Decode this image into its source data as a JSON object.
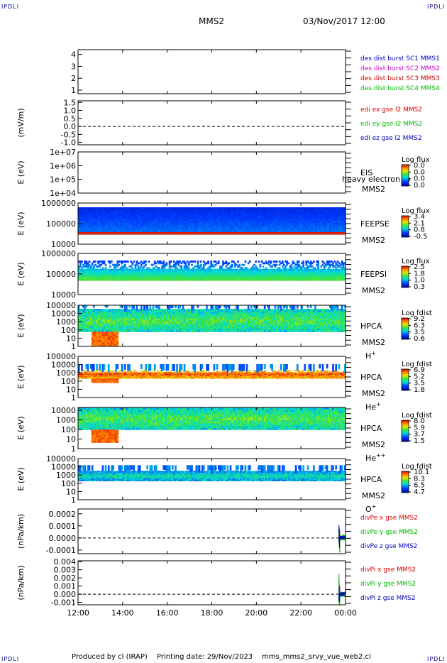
{
  "header": {
    "corner_labels": [
      "IPDLI",
      "IPDLI",
      "IPDLI",
      "IPDLI"
    ],
    "spacecraft": "MMS2",
    "datetime": "03/Nov/2017 12:00"
  },
  "footer": {
    "producer": "Produced by cl (IRAP)",
    "printing": "Printing date: 29/Nov/2023",
    "filename": "mms_mms2_srvy_vue_web2.cl"
  },
  "colors": {
    "mms1": "#0000cc",
    "mms2": "#cc00cc",
    "mms3": "#cc0000",
    "mms4": "#00bb00",
    "x": "#dd0000",
    "y": "#00bb00",
    "z": "#0000bb",
    "frame": "#000000"
  },
  "chart_data": [
    {
      "type": "line",
      "ylabel": "",
      "yticks": [
        "1",
        "2",
        "3",
        "4"
      ],
      "ylim": [
        0.7,
        4.4
      ],
      "legend": [
        {
          "text": "des dist burst SC1 MMS1",
          "color": "#0000cc"
        },
        {
          "text": "des dist burst SC2 MMS2",
          "color": "#cc00cc"
        },
        {
          "text": "des dist burst SC3 MMS3",
          "color": "#cc0000"
        },
        {
          "text": "des dist burst SC4 MMS4",
          "color": "#00bb00"
        }
      ]
    },
    {
      "type": "line",
      "ylabel": "(mV/m)",
      "yticks": [
        "1.5",
        "1.0",
        "0.5",
        "0.0",
        "-0.5",
        "-1.0"
      ],
      "ylim": [
        -1.15,
        1.6
      ],
      "zero_line": true,
      "legend": [
        {
          "text": "edi ex gse l2 MMS2",
          "color": "#dd0000"
        },
        {
          "text": "edi ey gse l2 MMS2",
          "color": "#00bb00"
        },
        {
          "text": "edi ez gse l2 MMS2",
          "color": "#0000bb"
        }
      ]
    },
    {
      "type": "heatmap",
      "ylabel": "E (eV)",
      "yticks": [
        "1e+07",
        "1e+06",
        "1e+05",
        "1e+04"
      ],
      "ylim": [
        10000,
        10000000
      ],
      "log_y": true,
      "instrument": "EIS",
      "overlay_text": "heavy electron to",
      "spacecraft": "MMS2",
      "species": "",
      "colorbar_title": "Log flux",
      "colorbar_ticks": [
        "0.0",
        "0.0",
        "0.0",
        "0.0"
      ]
    },
    {
      "type": "heatmap",
      "ylabel": "E (eV)",
      "yticks": [
        "1000000",
        "100000",
        "10000"
      ],
      "ylim": [
        10000,
        1000000
      ],
      "log_y": true,
      "instrument": "FEEPSE",
      "spacecraft": "MMS2",
      "species": "",
      "colorbar_title": "Log flux",
      "colorbar_ticks": [
        "3.4",
        "2.1",
        "0.8",
        "-0.5"
      ]
    },
    {
      "type": "heatmap",
      "ylabel": "E (eV)",
      "yticks": [
        "1000000",
        "100000",
        "10000"
      ],
      "ylim": [
        10000,
        1000000
      ],
      "log_y": true,
      "instrument": "FEEPSI",
      "spacecraft": "MMS2",
      "species": "",
      "colorbar_title": "Log flux",
      "colorbar_ticks": [
        "2.5",
        "1.8",
        "1.0",
        "0.3"
      ]
    },
    {
      "type": "heatmap",
      "ylabel": "E (eV)",
      "yticks": [
        "100000",
        "10000",
        "1000",
        "100",
        "10",
        "1"
      ],
      "ylim": [
        1,
        100000
      ],
      "log_y": true,
      "instrument": "HPCA",
      "spacecraft": "MMS2",
      "species": "H",
      "species_sup": "+",
      "colorbar_title": "Log fdist",
      "colorbar_ticks": [
        "9.2",
        "6.3",
        "3.5",
        "0.6"
      ]
    },
    {
      "type": "heatmap",
      "ylabel": "E (eV)",
      "yticks": [
        "100000",
        "10000",
        "1000",
        "100",
        "10",
        "1"
      ],
      "ylim": [
        1,
        100000
      ],
      "log_y": true,
      "instrument": "HPCA",
      "spacecraft": "MMS2",
      "species": "He",
      "species_sup": "+",
      "colorbar_title": "Log fdist",
      "colorbar_ticks": [
        "6.9",
        "5.2",
        "3.5",
        "1.8"
      ]
    },
    {
      "type": "heatmap",
      "ylabel": "E (eV)",
      "yticks": [
        "10000",
        "1000",
        "100",
        "10",
        "1"
      ],
      "ylim": [
        1,
        20000
      ],
      "log_y": true,
      "instrument": "HPCA",
      "spacecraft": "MMS2",
      "species": "He",
      "species_sup": "++",
      "colorbar_title": "Log fdist",
      "colorbar_ticks": [
        "8.0",
        "5.9",
        "3.7",
        "1.5"
      ]
    },
    {
      "type": "heatmap",
      "ylabel": "E (eV)",
      "yticks": [
        "100000",
        "10000",
        "1000",
        "100",
        "10",
        "1"
      ],
      "ylim": [
        1,
        100000
      ],
      "log_y": true,
      "instrument": "HPCA",
      "spacecraft": "MMS2",
      "species": "O",
      "species_sup": "+",
      "colorbar_title": "Log fdist",
      "colorbar_ticks": [
        "10.1",
        "8.3",
        "6.5",
        "4.7"
      ]
    },
    {
      "type": "line",
      "ylabel": "(nPa/km)",
      "yticks": [
        "0.0002",
        "0.0001",
        "0.0000",
        "-0.0001"
      ],
      "ylim": [
        -0.00013,
        0.00024
      ],
      "zero_line": true,
      "legend": [
        {
          "text": "divPe x gse MMS2",
          "color": "#dd0000"
        },
        {
          "text": "divPe y gse MMS2",
          "color": "#00bb00"
        },
        {
          "text": "divPe z gse MMS2",
          "color": "#0000bb"
        }
      ]
    },
    {
      "type": "line",
      "ylabel": "(nPa/km)",
      "yticks": [
        "0.004",
        "0.003",
        "0.002",
        "0.001",
        "0.000",
        "-0.001"
      ],
      "ylim": [
        -0.0013,
        0.0041
      ],
      "zero_line": true,
      "legend": [
        {
          "text": "divPi x gse MMS2",
          "color": "#dd0000"
        },
        {
          "text": "divPi y gse MMS2",
          "color": "#00bb00"
        },
        {
          "text": "divPi z gse MMS2",
          "color": "#0000bb"
        }
      ]
    }
  ],
  "x_axis": {
    "ticks": [
      "12:00",
      "14:00",
      "16:00",
      "18:00",
      "20:00",
      "22:00",
      "00:00"
    ],
    "range_hours": [
      12,
      24
    ]
  }
}
